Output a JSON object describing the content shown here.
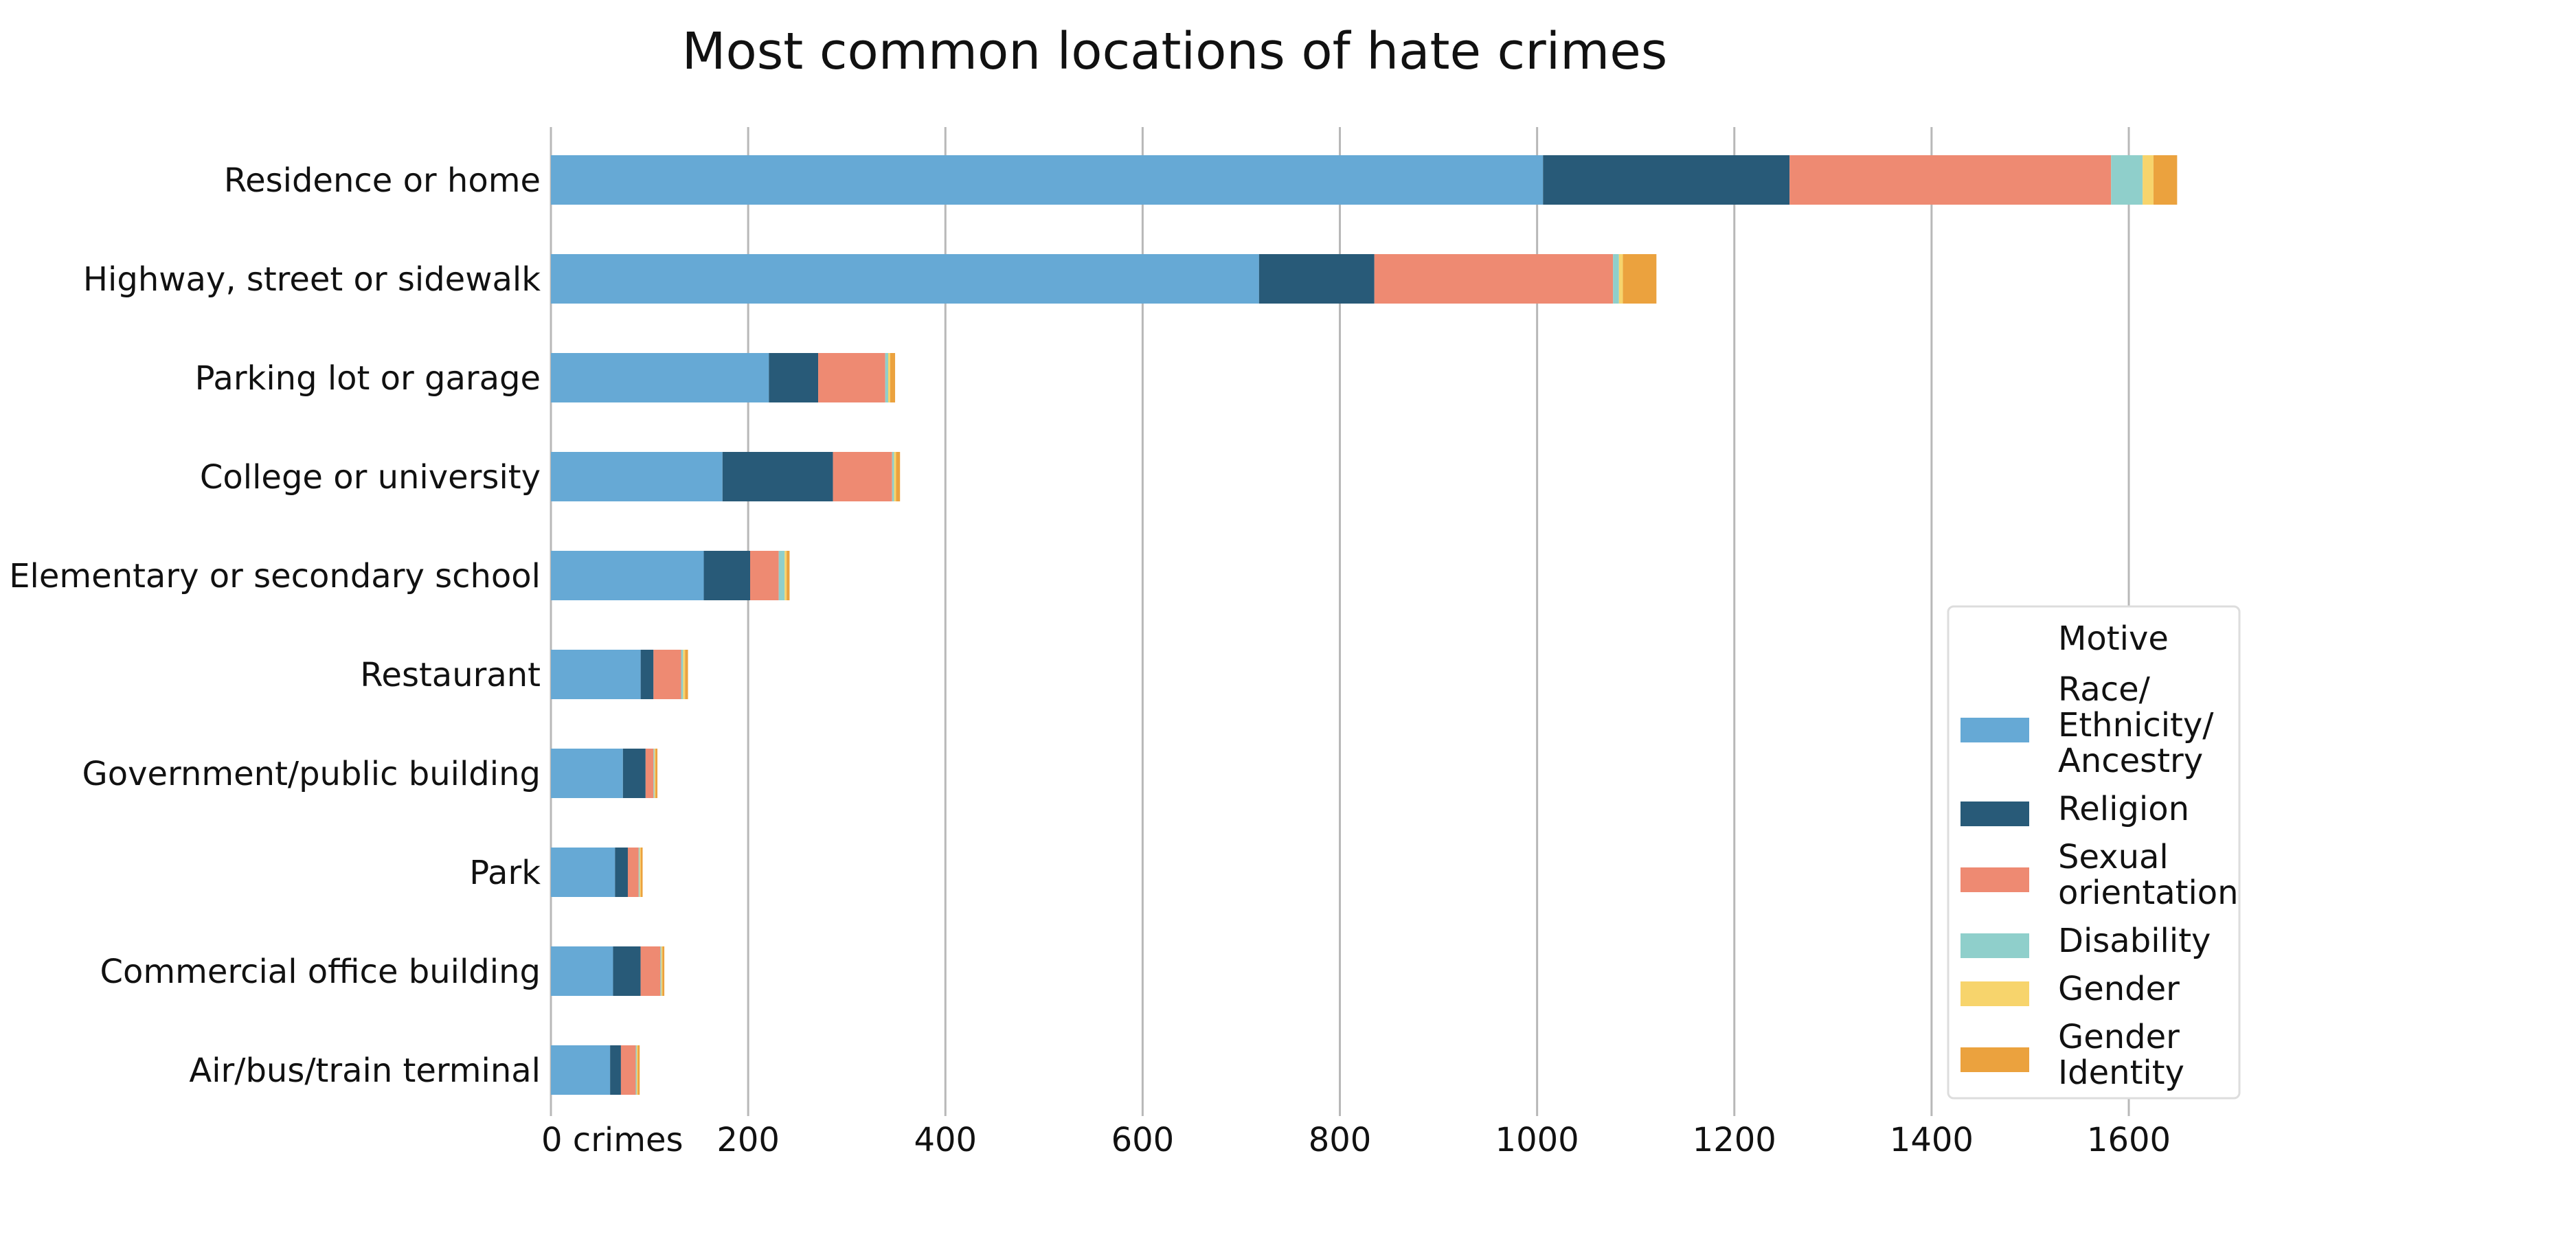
{
  "chart_data": {
    "type": "bar",
    "orientation": "horizontal",
    "stacked": true,
    "title": "Most common locations of hate crimes",
    "categories": [
      "Residence or home",
      "Highway, street or sidewalk",
      "Parking lot or garage",
      "College or university",
      "Elementary or secondary school",
      "Restaurant",
      "Government/public building",
      "Park",
      "Commercial office building",
      "Air/bus/train terminal"
    ],
    "series": [
      {
        "name": "Race/\nEthnicity/\nAncestry",
        "color": "#66a9d5",
        "values": [
          1006,
          718,
          221,
          174,
          155,
          91,
          73,
          65,
          63,
          60
        ]
      },
      {
        "name": "Religion",
        "color": "#285a78",
        "values": [
          250,
          117,
          50,
          112,
          47,
          13,
          23,
          13,
          28,
          11
        ]
      },
      {
        "name": "Sexual\norientation",
        "color": "#ee8a72",
        "values": [
          326,
          242,
          68,
          60,
          29,
          28,
          8,
          11,
          20,
          15
        ]
      },
      {
        "name": "Disability",
        "color": "#8fcfcb",
        "values": [
          32,
          6,
          3,
          2,
          6,
          2,
          1,
          1,
          1,
          1
        ]
      },
      {
        "name": "Gender",
        "color": "#f7d46c",
        "values": [
          11,
          4,
          2,
          2,
          2,
          2,
          1,
          1,
          1,
          1
        ]
      },
      {
        "name": "Gender\nIdentity",
        "color": "#eba23e",
        "values": [
          24,
          34,
          5,
          4,
          3,
          3,
          2,
          2,
          2,
          2
        ]
      }
    ],
    "xlim": [
      0,
      1700
    ],
    "xticks": [
      0,
      200,
      400,
      600,
      800,
      1000,
      1200,
      1400,
      1600
    ],
    "xtick_labels": [
      "0 crimes",
      "200",
      "400",
      "600",
      "800",
      "1000",
      "1200",
      "1400",
      "1600"
    ],
    "grid": "vertical",
    "legend": {
      "title": "Motive",
      "position": "bottom-right"
    }
  }
}
